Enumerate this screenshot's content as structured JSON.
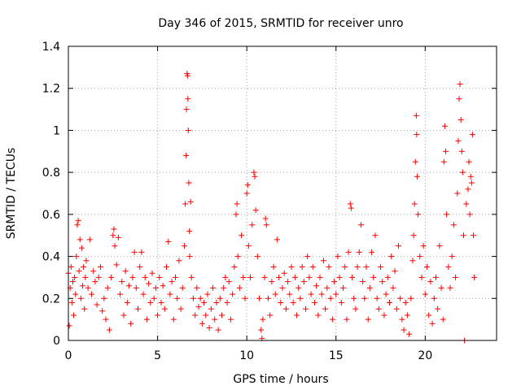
{
  "chart_data": {
    "type": "scatter",
    "title": "Day 346 of 2015, SRMTID for receiver unro",
    "xlabel": "GPS time / hours",
    "ylabel": "SRMTID / TECUs",
    "xlim": [
      0,
      24
    ],
    "ylim": [
      0,
      1.4
    ],
    "xticks": [
      0,
      5,
      10,
      15,
      20
    ],
    "xtick_labels": [
      "0",
      "5",
      "10",
      "15",
      "20"
    ],
    "yticks": [
      0,
      0.2,
      0.4,
      0.6,
      0.8,
      1.0,
      1.2,
      1.4
    ],
    "ytick_labels": [
      "0",
      "0.2",
      "0.4",
      "0.6",
      "0.8",
      "1",
      "1.2",
      "1.4"
    ],
    "grid": true,
    "marker": "+",
    "color": "#ff0000",
    "series": [
      {
        "name": "SRMTID",
        "points": [
          [
            0.0,
            0.32
          ],
          [
            0.05,
            0.07
          ],
          [
            0.1,
            0.25
          ],
          [
            0.15,
            0.35
          ],
          [
            0.2,
            0.18
          ],
          [
            0.25,
            0.28
          ],
          [
            0.3,
            0.12
          ],
          [
            0.35,
            0.3
          ],
          [
            0.4,
            0.22
          ],
          [
            0.45,
            0.4
          ],
          [
            0.5,
            0.55
          ],
          [
            0.55,
            0.57
          ],
          [
            0.6,
            0.33
          ],
          [
            0.65,
            0.48
          ],
          [
            0.7,
            0.2
          ],
          [
            0.75,
            0.44
          ],
          [
            0.8,
            0.26
          ],
          [
            0.85,
            0.35
          ],
          [
            0.9,
            0.15
          ],
          [
            0.95,
            0.3
          ],
          [
            1.0,
            0.38
          ],
          [
            1.1,
            0.25
          ],
          [
            1.2,
            0.48
          ],
          [
            1.3,
            0.22
          ],
          [
            1.4,
            0.33
          ],
          [
            1.5,
            0.28
          ],
          [
            1.6,
            0.17
          ],
          [
            1.7,
            0.3
          ],
          [
            1.8,
            0.35
          ],
          [
            1.9,
            0.14
          ],
          [
            2.0,
            0.2
          ],
          [
            2.1,
            0.1
          ],
          [
            2.2,
            0.25
          ],
          [
            2.3,
            0.05
          ],
          [
            2.4,
            0.3
          ],
          [
            2.5,
            0.5
          ],
          [
            2.55,
            0.53
          ],
          [
            2.6,
            0.45
          ],
          [
            2.7,
            0.36
          ],
          [
            2.8,
            0.49
          ],
          [
            2.9,
            0.22
          ],
          [
            3.0,
            0.28
          ],
          [
            3.1,
            0.12
          ],
          [
            3.2,
            0.33
          ],
          [
            3.3,
            0.18
          ],
          [
            3.4,
            0.26
          ],
          [
            3.5,
            0.08
          ],
          [
            3.6,
            0.3
          ],
          [
            3.7,
            0.42
          ],
          [
            3.8,
            0.25
          ],
          [
            3.9,
            0.15
          ],
          [
            4.0,
            0.35
          ],
          [
            4.1,
            0.42
          ],
          [
            4.2,
            0.22
          ],
          [
            4.3,
            0.3
          ],
          [
            4.4,
            0.1
          ],
          [
            4.5,
            0.27
          ],
          [
            4.6,
            0.18
          ],
          [
            4.7,
            0.32
          ],
          [
            4.8,
            0.2
          ],
          [
            4.9,
            0.25
          ],
          [
            5.0,
            0.12
          ],
          [
            5.1,
            0.3
          ],
          [
            5.2,
            0.18
          ],
          [
            5.3,
            0.26
          ],
          [
            5.4,
            0.15
          ],
          [
            5.5,
            0.35
          ],
          [
            5.6,
            0.47
          ],
          [
            5.7,
            0.22
          ],
          [
            5.8,
            0.28
          ],
          [
            5.9,
            0.1
          ],
          [
            6.0,
            0.3
          ],
          [
            6.1,
            0.2
          ],
          [
            6.2,
            0.38
          ],
          [
            6.3,
            0.15
          ],
          [
            6.4,
            0.25
          ],
          [
            6.5,
            0.45
          ],
          [
            6.55,
            0.65
          ],
          [
            6.6,
            0.88
          ],
          [
            6.62,
            1.1
          ],
          [
            6.65,
            1.27
          ],
          [
            6.68,
            1.26
          ],
          [
            6.7,
            1.15
          ],
          [
            6.72,
            1.0
          ],
          [
            6.75,
            0.75
          ],
          [
            6.78,
            0.52
          ],
          [
            6.8,
            0.4
          ],
          [
            6.85,
            0.66
          ],
          [
            6.9,
            0.3
          ],
          [
            7.0,
            0.2
          ],
          [
            7.1,
            0.12
          ],
          [
            7.2,
            0.25
          ],
          [
            7.3,
            0.16
          ],
          [
            7.4,
            0.2
          ],
          [
            7.5,
            0.08
          ],
          [
            7.6,
            0.18
          ],
          [
            7.7,
            0.12
          ],
          [
            7.8,
            0.22
          ],
          [
            7.9,
            0.06
          ],
          [
            8.0,
            0.15
          ],
          [
            8.1,
            0.25
          ],
          [
            8.2,
            0.1
          ],
          [
            8.3,
            0.18
          ],
          [
            8.4,
            0.05
          ],
          [
            8.5,
            0.2
          ],
          [
            8.6,
            0.12
          ],
          [
            8.7,
            0.25
          ],
          [
            8.8,
            0.3
          ],
          [
            8.9,
            0.18
          ],
          [
            9.0,
            0.28
          ],
          [
            9.1,
            0.1
          ],
          [
            9.2,
            0.22
          ],
          [
            9.3,
            0.35
          ],
          [
            9.4,
            0.6
          ],
          [
            9.45,
            0.65
          ],
          [
            9.5,
            0.4
          ],
          [
            9.6,
            0.25
          ],
          [
            9.7,
            0.5
          ],
          [
            9.8,
            0.3
          ],
          [
            9.9,
            0.2
          ],
          [
            10.0,
            0.7
          ],
          [
            10.05,
            0.74
          ],
          [
            10.1,
            0.45
          ],
          [
            10.2,
            0.3
          ],
          [
            10.3,
            0.55
          ],
          [
            10.4,
            0.8
          ],
          [
            10.45,
            0.78
          ],
          [
            10.5,
            0.62
          ],
          [
            10.6,
            0.4
          ],
          [
            10.7,
            0.2
          ],
          [
            10.8,
            0.05
          ],
          [
            10.85,
            0.01
          ],
          [
            10.9,
            0.1
          ],
          [
            11.0,
            0.3
          ],
          [
            11.05,
            0.58
          ],
          [
            11.1,
            0.55
          ],
          [
            11.2,
            0.2
          ],
          [
            11.3,
            0.12
          ],
          [
            11.4,
            0.28
          ],
          [
            11.5,
            0.35
          ],
          [
            11.6,
            0.22
          ],
          [
            11.7,
            0.48
          ],
          [
            11.8,
            0.3
          ],
          [
            11.9,
            0.18
          ],
          [
            12.0,
            0.25
          ],
          [
            12.1,
            0.32
          ],
          [
            12.2,
            0.15
          ],
          [
            12.3,
            0.28
          ],
          [
            12.4,
            0.22
          ],
          [
            12.5,
            0.35
          ],
          [
            12.6,
            0.18
          ],
          [
            12.7,
            0.3
          ],
          [
            12.8,
            0.12
          ],
          [
            12.9,
            0.25
          ],
          [
            13.0,
            0.2
          ],
          [
            13.1,
            0.35
          ],
          [
            13.2,
            0.28
          ],
          [
            13.3,
            0.15
          ],
          [
            13.4,
            0.4
          ],
          [
            13.5,
            0.3
          ],
          [
            13.6,
            0.22
          ],
          [
            13.7,
            0.35
          ],
          [
            13.8,
            0.18
          ],
          [
            13.9,
            0.26
          ],
          [
            14.0,
            0.12
          ],
          [
            14.1,
            0.3
          ],
          [
            14.2,
            0.22
          ],
          [
            14.3,
            0.38
          ],
          [
            14.4,
            0.15
          ],
          [
            14.5,
            0.25
          ],
          [
            14.6,
            0.35
          ],
          [
            14.7,
            0.2
          ],
          [
            14.8,
            0.1
          ],
          [
            14.9,
            0.28
          ],
          [
            15.0,
            0.22
          ],
          [
            15.1,
            0.4
          ],
          [
            15.2,
            0.3
          ],
          [
            15.3,
            0.18
          ],
          [
            15.4,
            0.25
          ],
          [
            15.5,
            0.35
          ],
          [
            15.6,
            0.1
          ],
          [
            15.7,
            0.42
          ],
          [
            15.8,
            0.65
          ],
          [
            15.85,
            0.63
          ],
          [
            15.9,
            0.3
          ],
          [
            16.0,
            0.2
          ],
          [
            16.1,
            0.15
          ],
          [
            16.2,
            0.35
          ],
          [
            16.3,
            0.42
          ],
          [
            16.4,
            0.55
          ],
          [
            16.5,
            0.28
          ],
          [
            16.6,
            0.2
          ],
          [
            16.7,
            0.35
          ],
          [
            16.8,
            0.1
          ],
          [
            16.9,
            0.25
          ],
          [
            17.0,
            0.42
          ],
          [
            17.1,
            0.3
          ],
          [
            17.2,
            0.5
          ],
          [
            17.3,
            0.2
          ],
          [
            17.4,
            0.15
          ],
          [
            17.5,
            0.35
          ],
          [
            17.6,
            0.28
          ],
          [
            17.7,
            0.12
          ],
          [
            17.8,
            0.22
          ],
          [
            17.9,
            0.3
          ],
          [
            18.0,
            0.18
          ],
          [
            18.1,
            0.4
          ],
          [
            18.2,
            0.25
          ],
          [
            18.3,
            0.33
          ],
          [
            18.4,
            0.15
          ],
          [
            18.5,
            0.45
          ],
          [
            18.6,
            0.2
          ],
          [
            18.7,
            0.1
          ],
          [
            18.8,
            0.05
          ],
          [
            18.9,
            0.18
          ],
          [
            19.0,
            0.12
          ],
          [
            19.1,
            0.03
          ],
          [
            19.2,
            0.2
          ],
          [
            19.3,
            0.38
          ],
          [
            19.35,
            0.5
          ],
          [
            19.4,
            0.65
          ],
          [
            19.45,
            0.85
          ],
          [
            19.5,
            1.07
          ],
          [
            19.52,
            0.98
          ],
          [
            19.55,
            0.78
          ],
          [
            19.6,
            0.6
          ],
          [
            19.7,
            0.4
          ],
          [
            19.8,
            0.3
          ],
          [
            19.9,
            0.45
          ],
          [
            20.0,
            0.22
          ],
          [
            20.1,
            0.35
          ],
          [
            20.2,
            0.12
          ],
          [
            20.3,
            0.28
          ],
          [
            20.4,
            0.08
          ],
          [
            20.5,
            0.2
          ],
          [
            20.6,
            0.3
          ],
          [
            20.7,
            0.15
          ],
          [
            20.8,
            0.45
          ],
          [
            20.9,
            0.25
          ],
          [
            21.0,
            0.1
          ],
          [
            21.05,
            0.85
          ],
          [
            21.1,
            1.02
          ],
          [
            21.15,
            0.9
          ],
          [
            21.2,
            0.6
          ],
          [
            21.3,
            0.35
          ],
          [
            21.4,
            0.25
          ],
          [
            21.5,
            0.4
          ],
          [
            21.6,
            0.55
          ],
          [
            21.7,
            0.3
          ],
          [
            21.8,
            0.7
          ],
          [
            21.85,
            0.95
          ],
          [
            21.9,
            1.15
          ],
          [
            21.95,
            1.22
          ],
          [
            22.0,
            1.05
          ],
          [
            22.05,
            0.9
          ],
          [
            22.1,
            0.8
          ],
          [
            22.15,
            0.5
          ],
          [
            22.2,
            0.0
          ],
          [
            22.3,
            0.65
          ],
          [
            22.4,
            0.72
          ],
          [
            22.45,
            0.85
          ],
          [
            22.5,
            0.6
          ],
          [
            22.55,
            0.78
          ],
          [
            22.6,
            0.75
          ],
          [
            22.65,
            0.98
          ],
          [
            22.7,
            0.5
          ],
          [
            22.75,
            0.3
          ]
        ]
      }
    ]
  }
}
